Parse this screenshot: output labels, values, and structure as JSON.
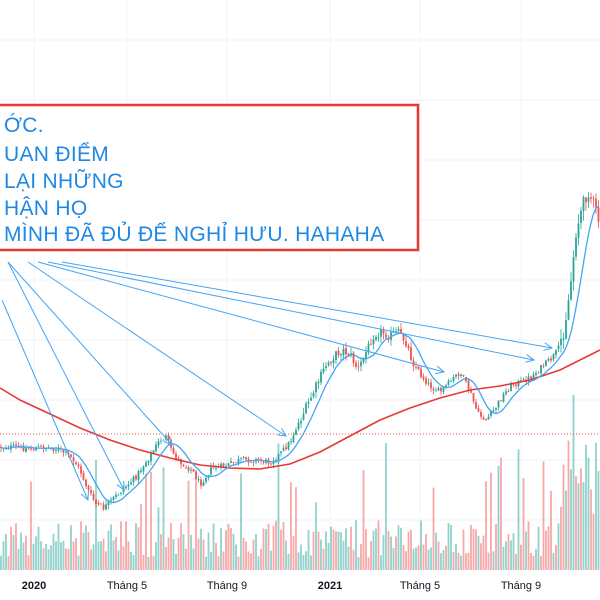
{
  "chart_data": {
    "type": "candlestick",
    "colors": {
      "up": "#26a69a",
      "down": "#ef5350",
      "ma_short": "#42a5f5",
      "ma_long": "#e53935",
      "arrow": "#42a5f5",
      "annotation_text": "#1e88e5",
      "annotation_border": "#e53935",
      "grid": "#f0f3fa",
      "price_line": "#ef5350"
    },
    "x_ticks": [
      {
        "label": "2020",
        "bold": true
      },
      {
        "label": "Tháng 5",
        "bold": false
      },
      {
        "label": "Tháng 9",
        "bold": false
      },
      {
        "label": "2021",
        "bold": true
      },
      {
        "label": "Tháng 5",
        "bold": false
      },
      {
        "label": "Tháng 9",
        "bold": false
      }
    ],
    "annotation": {
      "lines": [
        "ỚC.",
        "UAN ĐIỂM",
        "LẠI NHỮNG",
        "HẬN HỌ",
        "MÌNH ĐÃ ĐỦ ĐỂ NGHỈ HƯU. HAHAHA"
      ]
    },
    "grid": true,
    "legend": "none"
  }
}
